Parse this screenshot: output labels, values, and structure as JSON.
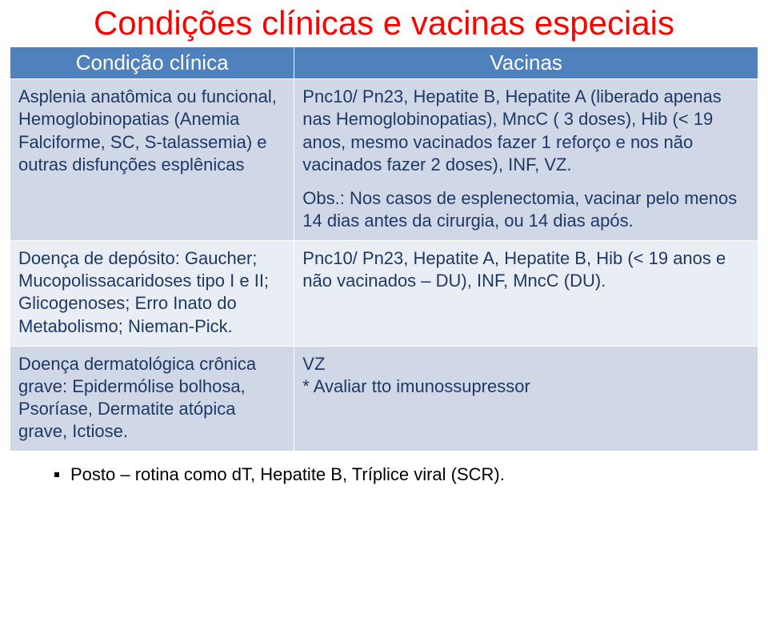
{
  "colors": {
    "title": "#ff0000",
    "header_bg": "#4f81bd",
    "header_fg": "#ffffff",
    "row_alt1_bg": "#d0d8e8",
    "row_alt2_bg": "#e9edf4",
    "body_fg": "#1f3864",
    "cell_border": "#ffffff"
  },
  "title": "Condições clínicas e vacinas especiais",
  "columns": {
    "condicao": "Condição clínica",
    "vacinas": "Vacinas"
  },
  "rows": [
    {
      "condicao": "Asplenia anatômica ou funcional, Hemoglobinopatias (Anemia Falciforme, SC, S-talassemia) e outras disfunções esplênicas",
      "vacinas_main": "Pnc10/ Pn23, Hepatite B, Hepatite A (liberado apenas nas Hemoglobinopatias), MncC ( 3 doses), Hib (< 19 anos, mesmo vacinados fazer 1 reforço e nos não vacinados fazer 2 doses), INF, VZ.",
      "vacinas_obs": "Obs.: Nos casos de esplenectomia, vacinar pelo menos 14 dias antes da cirurgia, ou 14 dias após."
    },
    {
      "condicao": "Doença de depósito: Gaucher; Mucopolissacaridoses tipo I e II; Glicogenoses; Erro Inato do Metabolismo; Nieman-Pick.",
      "vacinas_main": "Pnc10/ Pn23, Hepatite A, Hepatite B, Hib (< 19 anos e não vacinados – DU), INF, MncC (DU).",
      "vacinas_obs": ""
    },
    {
      "condicao": "Doença dermatológica crônica grave: Epidermólise bolhosa, Psoríase, Dermatite atópica grave, Ictiose.",
      "vacinas_main": "VZ\n* Avaliar tto imunossupressor",
      "vacinas_obs": ""
    }
  ],
  "footer": "Posto – rotina como dT, Hepatite B, Tríplice viral (SCR)."
}
